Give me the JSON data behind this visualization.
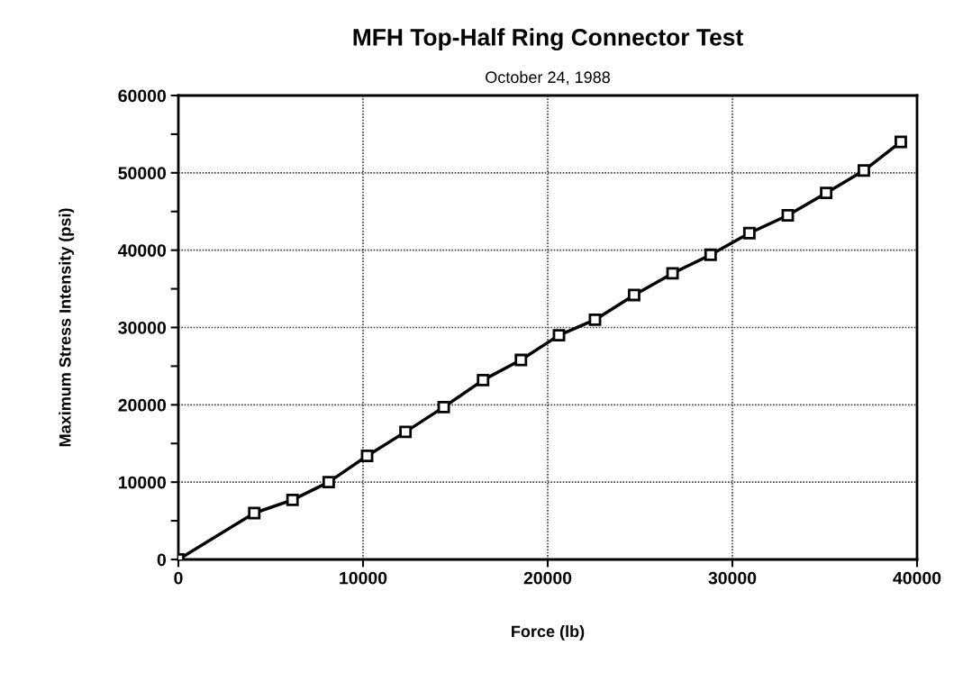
{
  "chart_data": {
    "type": "line",
    "title": "MFH Top-Half Ring Connector Test",
    "subtitle": "October 24, 1988",
    "xlabel": "Force (lb)",
    "ylabel": "Maximum Stress Intensity (psi)",
    "x": [
      0,
      4110,
      6180,
      8140,
      10220,
      12300,
      14370,
      16500,
      18550,
      20610,
      22560,
      24680,
      26760,
      28820,
      30920,
      33000,
      35080,
      37120,
      39120
    ],
    "series": [
      {
        "color": "#000000",
        "values": [
          0,
          6000,
          7700,
          10000,
          13400,
          16500,
          19700,
          23200,
          25800,
          29000,
          31000,
          34200,
          37000,
          39400,
          42200,
          44500,
          47400,
          50300,
          54000
        ]
      }
    ],
    "xlim": [
      0,
      40000
    ],
    "xticks": [
      0,
      10000,
      20000,
      30000,
      40000
    ],
    "ylim": [
      0,
      60000
    ],
    "yticks": [
      0,
      {
        "value": 5000,
        "label": null
      },
      10000,
      {
        "value": 15000,
        "label": null
      },
      20000,
      {
        "value": 25000,
        "label": null
      },
      30000,
      {
        "value": 35000,
        "label": null
      },
      40000,
      {
        "value": 45000,
        "label": null
      },
      50000,
      {
        "value": 55000,
        "label": null
      },
      60000
    ],
    "grid": true,
    "marker": "square",
    "line_style": "solid",
    "legend": false
  }
}
